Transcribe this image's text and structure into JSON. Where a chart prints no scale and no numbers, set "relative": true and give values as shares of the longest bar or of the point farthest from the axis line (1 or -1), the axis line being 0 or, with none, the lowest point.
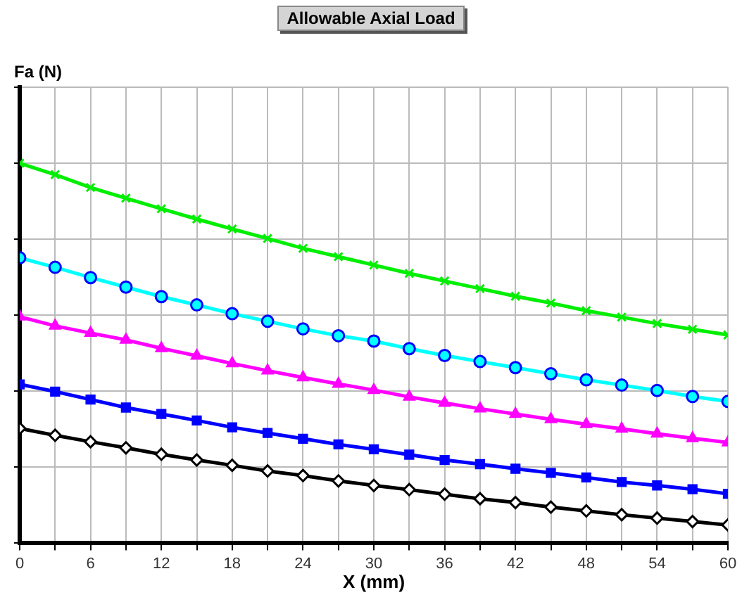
{
  "chart_data": {
    "type": "line",
    "title": "Allowable Axial Load",
    "xlabel": "X (mm)",
    "ylabel": "Fa (N)",
    "relative": true,
    "grid": true,
    "legend": false,
    "x": [
      0,
      3,
      6,
      9,
      12,
      15,
      18,
      21,
      24,
      27,
      30,
      33,
      36,
      39,
      42,
      45,
      48,
      51,
      54,
      57,
      60
    ],
    "xlim": [
      0,
      60
    ],
    "xticks": [
      0,
      {
        "value": 3,
        "label": null
      },
      6,
      {
        "value": 9,
        "label": null
      },
      12,
      {
        "value": 15,
        "label": null
      },
      18,
      {
        "value": 21,
        "label": null
      },
      24,
      {
        "value": 27,
        "label": null
      },
      30,
      {
        "value": 33,
        "label": null
      },
      36,
      {
        "value": 39,
        "label": null
      },
      42,
      {
        "value": 45,
        "label": null
      },
      48,
      {
        "value": 51,
        "label": null
      },
      54,
      {
        "value": 57,
        "label": null
      },
      60
    ],
    "series": [
      {
        "color": "#00ee00",
        "marker": "cross",
        "values": [
          1,
          0.97,
          0.936,
          0.908,
          0.88,
          0.853,
          0.827,
          0.802,
          0.776,
          0.754,
          0.732,
          0.71,
          0.69,
          0.67,
          0.65,
          0.632,
          0.612,
          0.595,
          0.578,
          0.563,
          0.548
        ]
      },
      {
        "color": "#00ffff",
        "marker": "circle",
        "values": [
          0.751,
          0.726,
          0.699,
          0.674,
          0.649,
          0.627,
          0.604,
          0.584,
          0.564,
          0.546,
          0.532,
          0.512,
          0.494,
          0.478,
          0.462,
          0.446,
          0.43,
          0.416,
          0.402,
          0.386,
          0.373
        ]
      },
      {
        "color": "#ff00ff",
        "marker": "triangle",
        "values": [
          0.596,
          0.572,
          0.553,
          0.535,
          0.513,
          0.493,
          0.473,
          0.454,
          0.436,
          0.419,
          0.403,
          0.385,
          0.369,
          0.354,
          0.34,
          0.326,
          0.313,
          0.301,
          0.288,
          0.276,
          0.265
        ]
      },
      {
        "color": "#0000ff",
        "marker": "square",
        "values": [
          0.418,
          0.399,
          0.378,
          0.357,
          0.34,
          0.323,
          0.305,
          0.29,
          0.275,
          0.26,
          0.247,
          0.233,
          0.219,
          0.208,
          0.196,
          0.185,
          0.173,
          0.161,
          0.152,
          0.142,
          0.13
        ]
      },
      {
        "color": "#000000",
        "marker": "diamond",
        "values": [
          0.302,
          0.284,
          0.267,
          0.251,
          0.234,
          0.219,
          0.205,
          0.19,
          0.178,
          0.164,
          0.152,
          0.141,
          0.129,
          0.117,
          0.107,
          0.095,
          0.085,
          0.075,
          0.066,
          0.057,
          0.048
        ]
      }
    ]
  }
}
